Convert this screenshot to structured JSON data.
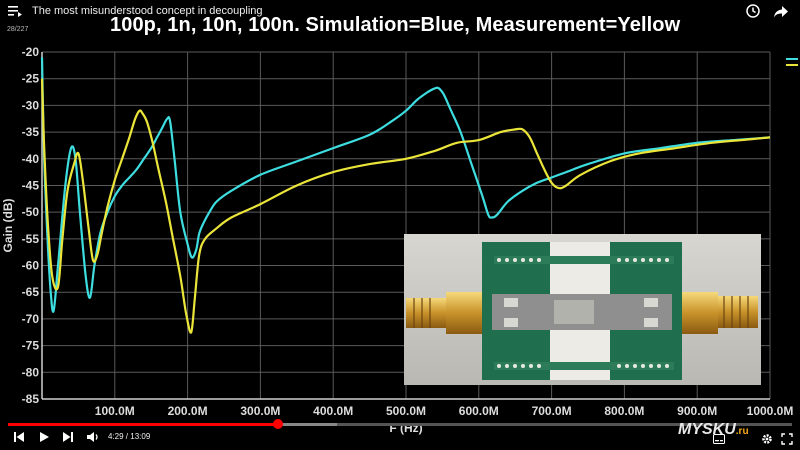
{
  "player": {
    "video_title": "The most misunderstood concept in decoupling",
    "counter": "28/227",
    "current_time": "4:29",
    "duration": "13:09",
    "time_separator": " / ",
    "played_fraction": 0.344,
    "loaded_fraction": 0.42,
    "icons": {
      "menu": "playlist-menu-icon",
      "clock": "watch-later-icon",
      "share": "share-icon",
      "prev": "previous-icon",
      "play": "play-icon",
      "next": "next-icon",
      "volume": "volume-icon"
    },
    "watermark": {
      "brand": "MYSKU",
      "suffix": ".ru"
    }
  },
  "chart_data": {
    "type": "line",
    "title": "100p, 1n, 10n, 100n. Simulation=Blue, Measurement=Yellow",
    "xlabel": "F (Hz)",
    "ylabel": "Gain (dB)",
    "xlim": [
      0,
      1000
    ],
    "ylim": [
      -85,
      -20
    ],
    "x_ticks": [
      "100.0M",
      "200.0M",
      "300.0M",
      "400.0M",
      "500.0M",
      "600.0M",
      "700.0M",
      "800.0M",
      "900.0M",
      "1000.0M"
    ],
    "y_ticks": [
      "-20",
      "-25",
      "-30",
      "-35",
      "-40",
      "-45",
      "-50",
      "-55",
      "-60",
      "-65",
      "-70",
      "-75",
      "-80",
      "-85"
    ],
    "grid": true,
    "series": [
      {
        "color": "#3ddde0",
        "x": [
          0,
          3,
          8,
          12,
          16,
          22,
          32,
          40,
          46,
          52,
          60,
          66,
          72,
          80,
          90,
          100,
          110,
          120,
          130,
          140,
          150,
          158,
          166,
          172,
          176,
          182,
          190,
          200,
          206,
          212,
          216,
          222,
          230,
          240,
          260,
          300,
          350,
          400,
          450,
          480,
          500,
          515,
          530,
          540,
          545,
          552,
          562,
          575,
          590,
          605,
          613,
          618,
          625,
          640,
          660,
          680,
          700,
          720,
          750,
          800,
          850,
          900,
          950,
          1000
        ],
        "y": [
          -21,
          -40,
          -56,
          -65,
          -68.5,
          -60,
          -45,
          -38,
          -40,
          -50,
          -62,
          -66,
          -60,
          -54,
          -50,
          -47,
          -45,
          -43.5,
          -42,
          -40,
          -38,
          -36,
          -34,
          -32.5,
          -33,
          -40,
          -50,
          -56,
          -58.5,
          -57,
          -54,
          -52,
          -50,
          -48,
          -46,
          -43,
          -40.5,
          -38,
          -35.5,
          -33,
          -31,
          -29,
          -27.5,
          -26.8,
          -26.8,
          -28,
          -31,
          -35,
          -41,
          -47,
          -50.5,
          -51,
          -50.5,
          -48,
          -46,
          -44.5,
          -43.5,
          -42.5,
          -41,
          -39,
          -38,
          -37,
          -36.5,
          -36
        ]
      },
      {
        "color": "#ebe53a",
        "x": [
          0,
          3,
          8,
          14,
          22,
          28,
          35,
          44,
          50,
          56,
          64,
          70,
          76,
          82,
          90,
          100,
          110,
          120,
          128,
          134,
          138,
          144,
          152,
          160,
          170,
          180,
          190,
          198,
          205,
          210,
          216,
          224,
          240,
          260,
          300,
          350,
          400,
          450,
          500,
          540,
          570,
          600,
          630,
          650,
          660,
          670,
          680,
          690,
          700,
          710,
          720,
          740,
          780,
          820,
          870,
          920,
          960,
          1000
        ],
        "y": [
          -25,
          -38,
          -52,
          -62,
          -64,
          -55,
          -46,
          -41,
          -39,
          -44,
          -53,
          -59,
          -58,
          -54,
          -49,
          -44,
          -40,
          -36,
          -32.5,
          -31,
          -31.5,
          -33,
          -37,
          -42,
          -48,
          -55,
          -62,
          -69,
          -72.5,
          -66,
          -58,
          -55,
          -53,
          -51,
          -48.5,
          -45,
          -42.5,
          -41,
          -40,
          -38.5,
          -37,
          -36.5,
          -35,
          -34.5,
          -34.5,
          -36,
          -39,
          -42,
          -44.5,
          -45.5,
          -45,
          -43,
          -40.5,
          -39,
          -38,
          -37,
          -36.5,
          -36
        ]
      }
    ]
  }
}
